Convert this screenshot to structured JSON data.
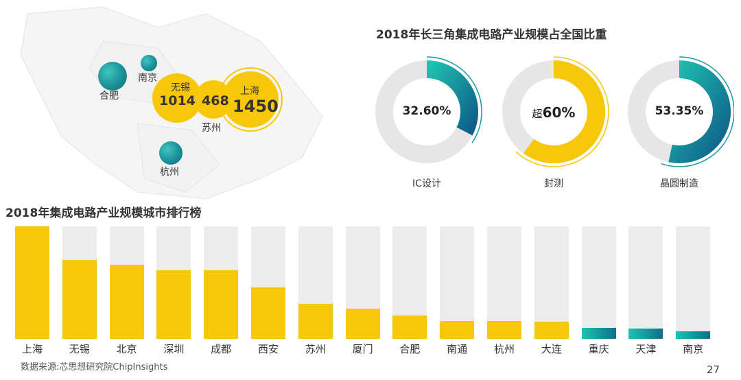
{
  "map": {
    "cities": {
      "hefei": "合肥",
      "nanjing": "南京",
      "wuxi": "无锡",
      "shanghai": "上海",
      "suzhou": "苏州",
      "hangzhou": "杭州"
    },
    "values": {
      "wuxi": "1014",
      "suzhou": "468",
      "shanghai": "1450"
    }
  },
  "donut_section": {
    "title": "2018年长三角集成电路产业规模占全国比重",
    "items": [
      {
        "label": "IC设计",
        "value_text": "32.60%",
        "value_prefix": "",
        "share": 0.326,
        "color": "teal"
      },
      {
        "label": "封测",
        "value_text": "60%",
        "value_prefix": "超",
        "share": 0.6,
        "color": "yellow"
      },
      {
        "label": "晶圆制造",
        "value_text": "53.35%",
        "value_prefix": "",
        "share": 0.5335,
        "color": "teal"
      }
    ]
  },
  "bar_section": {
    "title": "2018年集成电路产业规模城市排行榜"
  },
  "chart_data": {
    "type": "bar",
    "title": "2018年集成电路产业规模城市排行榜",
    "categories": [
      "上海",
      "无锡",
      "北京",
      "深圳",
      "成都",
      "西安",
      "苏州",
      "厦门",
      "合肥",
      "南通",
      "杭州",
      "大连",
      "重庆",
      "天津",
      "南京"
    ],
    "values": [
      1.0,
      0.7,
      0.66,
      0.61,
      0.61,
      0.46,
      0.31,
      0.27,
      0.21,
      0.16,
      0.16,
      0.15,
      0.1,
      0.09,
      0.07
    ],
    "highlight": [
      "yellow",
      "yellow",
      "yellow",
      "yellow",
      "yellow",
      "yellow",
      "yellow",
      "yellow",
      "yellow",
      "yellow",
      "yellow",
      "yellow",
      "teal",
      "teal",
      "teal"
    ],
    "ylim": [
      0,
      1.0
    ]
  },
  "footer": {
    "source": "数据来源:芯思想研究院ChipInsights",
    "page": "27"
  },
  "colors": {
    "yellow": "#f8c70a",
    "teal": "#1a9aa0",
    "grey": "#ececec"
  }
}
